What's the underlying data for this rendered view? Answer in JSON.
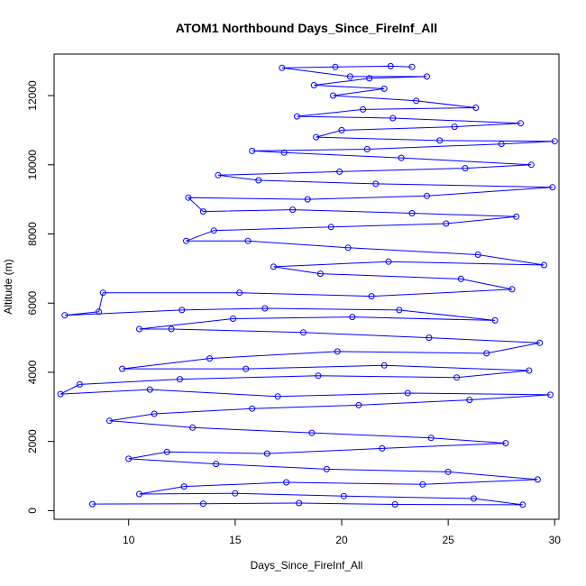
{
  "chart_data": {
    "type": "line",
    "title": "ATOM1 Northbound Days_Since_FireInf_All",
    "xlabel": "Days_Since_FireInf_All",
    "ylabel": "Altitude (m)",
    "xlim": [
      6.5,
      30.2
    ],
    "ylim": [
      -250,
      13200
    ],
    "xticks": [
      10,
      15,
      20,
      25,
      30
    ],
    "yticks": [
      0,
      2000,
      4000,
      6000,
      8000,
      10000,
      12000
    ],
    "marker": "open-circle",
    "line_color": "#0000ff",
    "grid": false,
    "legend": "none",
    "series": [
      {
        "values": [
          [
            8.3,
            190
          ],
          [
            13.5,
            200
          ],
          [
            18.0,
            220
          ],
          [
            22.5,
            180
          ],
          [
            28.5,
            170
          ],
          [
            26.2,
            350
          ],
          [
            20.1,
            420
          ],
          [
            15.0,
            500
          ],
          [
            10.5,
            480
          ],
          [
            12.6,
            700
          ],
          [
            17.4,
            820
          ],
          [
            23.8,
            760
          ],
          [
            29.2,
            900
          ],
          [
            25.0,
            1120
          ],
          [
            19.3,
            1200
          ],
          [
            14.1,
            1350
          ],
          [
            10.0,
            1500
          ],
          [
            11.8,
            1700
          ],
          [
            16.5,
            1650
          ],
          [
            21.9,
            1800
          ],
          [
            27.7,
            1950
          ],
          [
            24.2,
            2100
          ],
          [
            18.6,
            2250
          ],
          [
            13.0,
            2400
          ],
          [
            9.1,
            2600
          ],
          [
            11.2,
            2800
          ],
          [
            15.8,
            2950
          ],
          [
            20.8,
            3050
          ],
          [
            26.0,
            3200
          ],
          [
            29.8,
            3350
          ],
          [
            23.1,
            3400
          ],
          [
            17.0,
            3300
          ],
          [
            11.0,
            3500
          ],
          [
            6.8,
            3370
          ],
          [
            7.7,
            3650
          ],
          [
            12.4,
            3800
          ],
          [
            18.9,
            3900
          ],
          [
            25.4,
            3850
          ],
          [
            28.8,
            4050
          ],
          [
            22.0,
            4200
          ],
          [
            15.5,
            4100
          ],
          [
            9.7,
            4100
          ],
          [
            13.8,
            4400
          ],
          [
            19.8,
            4600
          ],
          [
            26.8,
            4550
          ],
          [
            29.3,
            4850
          ],
          [
            24.1,
            5000
          ],
          [
            18.2,
            5150
          ],
          [
            12.0,
            5250
          ],
          [
            10.5,
            5250
          ],
          [
            14.9,
            5550
          ],
          [
            20.5,
            5600
          ],
          [
            27.2,
            5500
          ],
          [
            22.7,
            5800
          ],
          [
            16.4,
            5850
          ],
          [
            12.5,
            5800
          ],
          [
            7.0,
            5650
          ],
          [
            8.6,
            5750
          ],
          [
            8.8,
            6300
          ],
          [
            15.2,
            6300
          ],
          [
            21.4,
            6200
          ],
          [
            28.0,
            6400
          ],
          [
            25.6,
            6700
          ],
          [
            19.0,
            6850
          ],
          [
            16.8,
            7050
          ],
          [
            22.2,
            7200
          ],
          [
            29.5,
            7100
          ],
          [
            26.4,
            7400
          ],
          [
            20.3,
            7600
          ],
          [
            15.6,
            7800
          ],
          [
            12.7,
            7800
          ],
          [
            14.0,
            8100
          ],
          [
            19.5,
            8200
          ],
          [
            24.9,
            8300
          ],
          [
            28.2,
            8500
          ],
          [
            23.3,
            8600
          ],
          [
            17.7,
            8700
          ],
          [
            13.5,
            8650
          ],
          [
            12.8,
            9050
          ],
          [
            18.4,
            9000
          ],
          [
            24.0,
            9100
          ],
          [
            29.9,
            9350
          ],
          [
            21.6,
            9450
          ],
          [
            16.1,
            9550
          ],
          [
            14.2,
            9700
          ],
          [
            19.9,
            9800
          ],
          [
            25.8,
            9900
          ],
          [
            28.9,
            10000
          ],
          [
            22.8,
            10200
          ],
          [
            17.3,
            10350
          ],
          [
            15.8,
            10400
          ],
          [
            21.2,
            10450
          ],
          [
            27.5,
            10600
          ],
          [
            30.0,
            10680
          ],
          [
            24.6,
            10700
          ],
          [
            18.8,
            10800
          ],
          [
            20.0,
            11000
          ],
          [
            25.3,
            11100
          ],
          [
            28.4,
            11200
          ],
          [
            22.4,
            11350
          ],
          [
            17.9,
            11400
          ],
          [
            21.0,
            11600
          ],
          [
            26.3,
            11650
          ],
          [
            23.5,
            11850
          ],
          [
            19.6,
            12000
          ],
          [
            22.0,
            12200
          ],
          [
            18.7,
            12300
          ],
          [
            21.3,
            12500
          ],
          [
            24.0,
            12550
          ],
          [
            20.4,
            12550
          ],
          [
            17.2,
            12800
          ],
          [
            19.7,
            12830
          ],
          [
            22.3,
            12850
          ],
          [
            23.3,
            12830
          ]
        ]
      }
    ]
  }
}
